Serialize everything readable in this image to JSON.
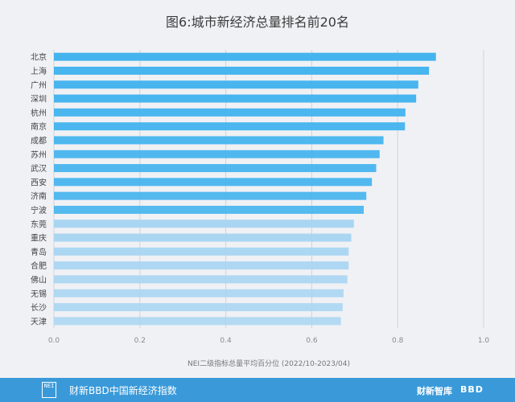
{
  "chart_data": {
    "type": "bar",
    "orientation": "horizontal",
    "title": "图6:城市新经济总量排名前20名",
    "xlabel": "NEI二级指标总量平均百分位 (2022/10-2023/04)",
    "ylabel": "",
    "xlim": [
      0,
      1.0
    ],
    "xticks": [
      "0.0",
      "0.2",
      "0.4",
      "0.6",
      "0.8",
      "1.0"
    ],
    "grid": true,
    "categories": [
      "北京",
      "上海",
      "广州",
      "深圳",
      "杭州",
      "南京",
      "成都",
      "苏州",
      "武汉",
      "西安",
      "济南",
      "宁波",
      "东莞",
      "重庆",
      "青岛",
      "合肥",
      "佛山",
      "无锡",
      "长沙",
      "天津"
    ],
    "values": [
      0.889,
      0.873,
      0.848,
      0.843,
      0.818,
      0.817,
      0.767,
      0.758,
      0.75,
      0.74,
      0.727,
      0.721,
      0.698,
      0.692,
      0.686,
      0.686,
      0.683,
      0.674,
      0.672,
      0.668
    ],
    "colors": {
      "bar_strong": "#45b4ee",
      "bar_light": "#a8d5f2",
      "grid": "#cfd2d8",
      "axis_text": "#8a8a8a",
      "label_text": "#444444"
    }
  },
  "footer": {
    "logo_text": "NEI",
    "source": "财新BBD中国新经济指数",
    "brand": "财新智库",
    "brand2": "BBD"
  }
}
